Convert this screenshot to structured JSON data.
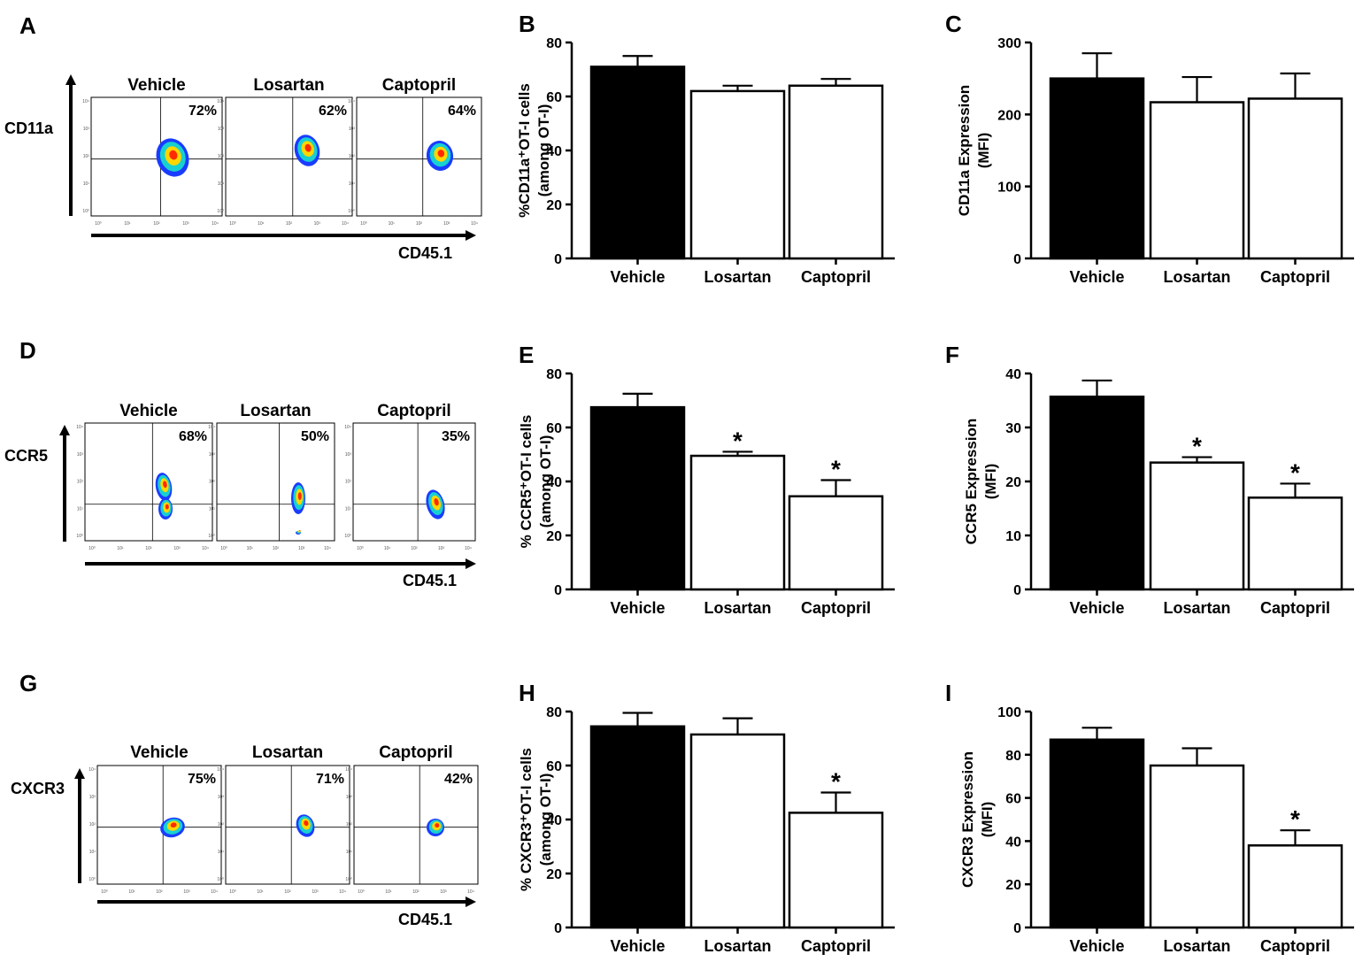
{
  "flow_panels": [
    {
      "letter": "A",
      "marker": "CD11a",
      "x_marker": "CD45.1",
      "samples": [
        {
          "name": "Vehicle",
          "pct": "72%"
        },
        {
          "name": "Losartan",
          "pct": "62%"
        },
        {
          "name": "Captopril",
          "pct": "64%"
        }
      ]
    },
    {
      "letter": "D",
      "marker": "CCR5",
      "x_marker": "CD45.1",
      "samples": [
        {
          "name": "Vehicle",
          "pct": "68%"
        },
        {
          "name": "Losartan",
          "pct": "50%"
        },
        {
          "name": "Captopril",
          "pct": "35%"
        }
      ]
    },
    {
      "letter": "G",
      "marker": "CXCR3",
      "x_marker": "CD45.1",
      "samples": [
        {
          "name": "Vehicle",
          "pct": "75%"
        },
        {
          "name": "Losartan",
          "pct": "71%"
        },
        {
          "name": "Captopril",
          "pct": "42%"
        }
      ]
    }
  ],
  "flow_axis_ticks": [
    "10⁰",
    "10¹",
    "10²",
    "10³",
    "10⁴"
  ],
  "colors": {
    "vehicle_bar": "#000000",
    "treated_bar": "#ffffff",
    "axis": "#000000",
    "density_outer": "#1a3cff",
    "density_mid": "#18d0d0",
    "density_core": "#ffd600",
    "density_peak": "#ff2a00"
  },
  "chart_data": [
    {
      "letter": "B",
      "type": "bar",
      "ylabel": "%CD11a⁺OT-I cells",
      "ylabel2": "(among OT-I)",
      "ylim": [
        0,
        80
      ],
      "yticks": [
        0,
        20,
        40,
        60,
        80
      ],
      "categories": [
        "Vehicle",
        "Losartan",
        "Captopril"
      ],
      "values": [
        71,
        62,
        64
      ],
      "errors": [
        4,
        2,
        2.5
      ],
      "significant": [
        false,
        false,
        false
      ]
    },
    {
      "letter": "C",
      "type": "bar",
      "ylabel": "CD11a Expression",
      "ylabel2": "(MFI)",
      "ylim": [
        0,
        300
      ],
      "yticks": [
        0,
        100,
        200,
        300
      ],
      "categories": [
        "Vehicle",
        "Losartan",
        "Captopril"
      ],
      "values": [
        250,
        217,
        222
      ],
      "errors": [
        35,
        35,
        35
      ],
      "significant": [
        false,
        false,
        false
      ]
    },
    {
      "letter": "E",
      "type": "bar",
      "ylabel": "% CCR5⁺OT-I cells",
      "ylabel2": "(among OT-I)",
      "ylim": [
        0,
        80
      ],
      "yticks": [
        0,
        20,
        40,
        60,
        80
      ],
      "categories": [
        "Vehicle",
        "Losartan",
        "Captopril"
      ],
      "values": [
        67.5,
        49.5,
        34.5
      ],
      "errors": [
        5,
        1.5,
        6
      ],
      "significant": [
        false,
        true,
        true
      ]
    },
    {
      "letter": "F",
      "type": "bar",
      "ylabel": "CCR5 Expression",
      "ylabel2": "(MFI)",
      "ylim": [
        0,
        40
      ],
      "yticks": [
        0,
        10,
        20,
        30,
        40
      ],
      "categories": [
        "Vehicle",
        "Losartan",
        "Captopril"
      ],
      "values": [
        35.7,
        23.5,
        17
      ],
      "errors": [
        3,
        1,
        2.6
      ],
      "significant": [
        false,
        true,
        true
      ]
    },
    {
      "letter": "H",
      "type": "bar",
      "ylabel": "% CXCR3⁺OT-I cells",
      "ylabel2": "(among OT-I)",
      "ylim": [
        0,
        80
      ],
      "yticks": [
        0,
        20,
        40,
        60,
        80
      ],
      "categories": [
        "Vehicle",
        "Losartan",
        "Captopril"
      ],
      "values": [
        74.5,
        71.5,
        42.5
      ],
      "errors": [
        5,
        6,
        7.5
      ],
      "significant": [
        false,
        false,
        true
      ]
    },
    {
      "letter": "I",
      "type": "bar",
      "ylabel": "CXCR3 Expression",
      "ylabel2": "(MFI)",
      "ylim": [
        0,
        100
      ],
      "yticks": [
        0,
        20,
        40,
        60,
        80,
        100
      ],
      "categories": [
        "Vehicle",
        "Losartan",
        "Captopril"
      ],
      "values": [
        87,
        75,
        38
      ],
      "errors": [
        5.5,
        8,
        7
      ],
      "significant": [
        false,
        false,
        true
      ]
    }
  ],
  "significance_symbol": "*"
}
